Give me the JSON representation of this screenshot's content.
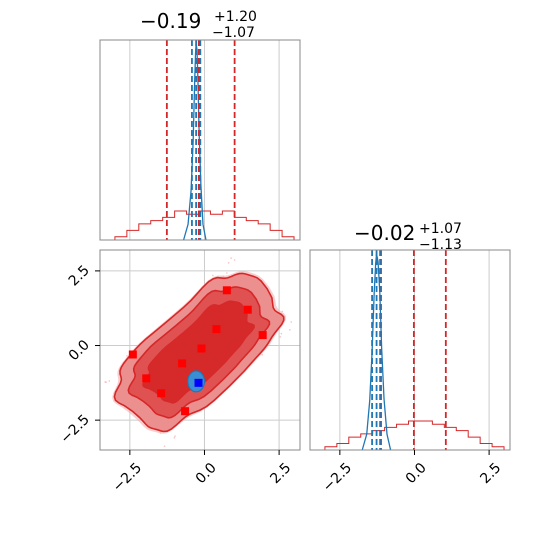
{
  "chart_data": {
    "type": "corner",
    "parameters": [
      {
        "title": {
          "median": "−0.19",
          "plus": "+1.20",
          "minus": "−1.07"
        },
        "xlim": [
          -3.5,
          3.2
        ],
        "ticks": [
          -2.5,
          0.0,
          2.5
        ],
        "tick_labels": [
          "−2.5",
          "0.0",
          "2.5"
        ]
      },
      {
        "title": {
          "median": "−0.02",
          "plus": "+1.07",
          "minus": "−1.13"
        },
        "xlim": [
          -3.5,
          3.2
        ],
        "ticks": [
          -2.5,
          0.0,
          2.5
        ],
        "tick_labels": [
          "−2.5",
          "0.0",
          "2.5"
        ]
      }
    ],
    "colors": {
      "posterior_red": "#d62728",
      "narrow_blue": "#1f77b4",
      "marker_red": "#ff0000",
      "marker_blue": "#0000ff"
    },
    "diagonal": [
      {
        "red_quantiles": [
          -1.26,
          -0.19,
          1.01
        ],
        "blue_quantiles": [
          -0.42,
          -0.28,
          -0.14
        ],
        "red_hist": {
          "x": [
            -2.8,
            -2.4,
            -2.0,
            -1.6,
            -1.2,
            -0.8,
            -0.4,
            0.0,
            0.4,
            0.8,
            1.2,
            1.6,
            2.0,
            2.4,
            2.8
          ],
          "y": [
            0.01,
            0.03,
            0.05,
            0.06,
            0.07,
            0.09,
            0.08,
            0.09,
            0.08,
            0.09,
            0.07,
            0.06,
            0.05,
            0.03,
            0.01
          ]
        },
        "blue_curve": {
          "x": [
            -0.7,
            -0.55,
            -0.45,
            -0.38,
            -0.33,
            -0.3,
            -0.28,
            -0.25,
            -0.22,
            -0.18,
            -0.12,
            -0.05,
            0.05
          ],
          "y": [
            0.0,
            0.08,
            0.25,
            0.5,
            0.8,
            0.95,
            1.0,
            0.97,
            0.82,
            0.55,
            0.28,
            0.08,
            0.0
          ]
        }
      },
      {
        "red_quantiles": [
          -1.15,
          -0.02,
          1.05
        ],
        "blue_quantiles": [
          -1.42,
          -1.27,
          -1.12
        ],
        "red_hist": {
          "x": [
            -2.8,
            -2.4,
            -2.0,
            -1.6,
            -1.2,
            -0.8,
            -0.4,
            0.0,
            0.4,
            0.8,
            1.2,
            1.6,
            2.0,
            2.4,
            2.8
          ],
          "y": [
            0.01,
            0.02,
            0.04,
            0.05,
            0.06,
            0.07,
            0.08,
            0.09,
            0.09,
            0.08,
            0.07,
            0.06,
            0.04,
            0.02,
            0.01
          ]
        },
        "blue_curve": {
          "x": [
            -1.75,
            -1.6,
            -1.5,
            -1.42,
            -1.35,
            -1.3,
            -1.27,
            -1.22,
            -1.16,
            -1.1,
            -1.02,
            -0.92,
            -0.8
          ],
          "y": [
            0.0,
            0.08,
            0.25,
            0.5,
            0.8,
            0.95,
            1.0,
            0.96,
            0.8,
            0.52,
            0.26,
            0.08,
            0.0
          ]
        }
      }
    ],
    "markers_red": [
      {
        "x": 0.75,
        "y": 1.85
      },
      {
        "x": 1.45,
        "y": 1.2
      },
      {
        "x": 1.95,
        "y": 0.35
      },
      {
        "x": 0.4,
        "y": 0.55
      },
      {
        "x": -0.1,
        "y": -0.1
      },
      {
        "x": -2.4,
        "y": -0.3
      },
      {
        "x": -0.75,
        "y": -0.6
      },
      {
        "x": -1.95,
        "y": -1.1
      },
      {
        "x": -1.45,
        "y": -1.6
      },
      {
        "x": -0.65,
        "y": -2.2
      }
    ],
    "markers_blue": [
      {
        "x": -0.2,
        "y": -1.25
      }
    ],
    "blue_blob": {
      "cx": -0.28,
      "cy": -1.2,
      "rx": 0.28,
      "ry": 0.35
    }
  }
}
